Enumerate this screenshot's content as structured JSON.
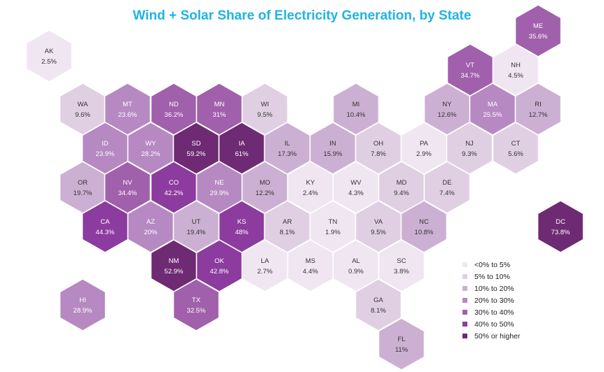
{
  "title": "Wind + Solar Share of Electricity Generation, by State",
  "legend": [
    {
      "label": "<0% to 5%",
      "color": "#f0e6f2"
    },
    {
      "label": "5% to 10%",
      "color": "#e0cfe3"
    },
    {
      "label": "10% to 20%",
      "color": "#ccb0d3"
    },
    {
      "label": "20% to 30%",
      "color": "#b689c2"
    },
    {
      "label": "30% to 40%",
      "color": "#a060ab"
    },
    {
      "label": "40% to 50%",
      "color": "#8c3b9e"
    },
    {
      "label": "50% or higher",
      "color": "#6e2a72"
    }
  ],
  "states": [
    {
      "abbr": "AK",
      "value": "2.5%",
      "bin": 0
    },
    {
      "abbr": "ME",
      "value": "35.6%",
      "bin": 4
    },
    {
      "abbr": "VT",
      "value": "34.7%",
      "bin": 4
    },
    {
      "abbr": "NH",
      "value": "4.5%",
      "bin": 0
    },
    {
      "abbr": "WA",
      "value": "9.6%",
      "bin": 1
    },
    {
      "abbr": "MT",
      "value": "23.6%",
      "bin": 3
    },
    {
      "abbr": "ND",
      "value": "36.2%",
      "bin": 4
    },
    {
      "abbr": "MN",
      "value": "31%",
      "bin": 4
    },
    {
      "abbr": "WI",
      "value": "9.5%",
      "bin": 1
    },
    {
      "abbr": "MI",
      "value": "10.4%",
      "bin": 2
    },
    {
      "abbr": "NY",
      "value": "12.6%",
      "bin": 2
    },
    {
      "abbr": "MA",
      "value": "25.5%",
      "bin": 3
    },
    {
      "abbr": "RI",
      "value": "12.7%",
      "bin": 2
    },
    {
      "abbr": "ID",
      "value": "23.9%",
      "bin": 3
    },
    {
      "abbr": "WY",
      "value": "28.2%",
      "bin": 3
    },
    {
      "abbr": "SD",
      "value": "59.2%",
      "bin": 6
    },
    {
      "abbr": "IA",
      "value": "61%",
      "bin": 6
    },
    {
      "abbr": "IL",
      "value": "17.3%",
      "bin": 2
    },
    {
      "abbr": "IN",
      "value": "15.9%",
      "bin": 2
    },
    {
      "abbr": "OH",
      "value": "7.8%",
      "bin": 1
    },
    {
      "abbr": "PA",
      "value": "2.9%",
      "bin": 0
    },
    {
      "abbr": "NJ",
      "value": "9.3%",
      "bin": 1
    },
    {
      "abbr": "CT",
      "value": "5.6%",
      "bin": 1
    },
    {
      "abbr": "OR",
      "value": "19.7%",
      "bin": 2
    },
    {
      "abbr": "NV",
      "value": "34.4%",
      "bin": 4
    },
    {
      "abbr": "CO",
      "value": "42.2%",
      "bin": 5
    },
    {
      "abbr": "NE",
      "value": "29.9%",
      "bin": 3
    },
    {
      "abbr": "MO",
      "value": "12.2%",
      "bin": 2
    },
    {
      "abbr": "KY",
      "value": "2.4%",
      "bin": 0
    },
    {
      "abbr": "WV",
      "value": "4.3%",
      "bin": 0
    },
    {
      "abbr": "MD",
      "value": "9.4%",
      "bin": 1
    },
    {
      "abbr": "DE",
      "value": "7.4%",
      "bin": 1
    },
    {
      "abbr": "CA",
      "value": "44.3%",
      "bin": 5
    },
    {
      "abbr": "AZ",
      "value": "20%",
      "bin": 3
    },
    {
      "abbr": "UT",
      "value": "19.4%",
      "bin": 2
    },
    {
      "abbr": "KS",
      "value": "48%",
      "bin": 5
    },
    {
      "abbr": "AR",
      "value": "8.1%",
      "bin": 1
    },
    {
      "abbr": "TN",
      "value": "1.9%",
      "bin": 0
    },
    {
      "abbr": "VA",
      "value": "9.5%",
      "bin": 1
    },
    {
      "abbr": "NC",
      "value": "10.8%",
      "bin": 2
    },
    {
      "abbr": "DC",
      "value": "73.8%",
      "bin": 6
    },
    {
      "abbr": "NM",
      "value": "52.9%",
      "bin": 6
    },
    {
      "abbr": "OK",
      "value": "42.8%",
      "bin": 5
    },
    {
      "abbr": "LA",
      "value": "2.7%",
      "bin": 0
    },
    {
      "abbr": "MS",
      "value": "4.4%",
      "bin": 0
    },
    {
      "abbr": "AL",
      "value": "0.9%",
      "bin": 0
    },
    {
      "abbr": "SC",
      "value": "3.8%",
      "bin": 0
    },
    {
      "abbr": "HI",
      "value": "28.9%",
      "bin": 3
    },
    {
      "abbr": "TX",
      "value": "32.5%",
      "bin": 4
    },
    {
      "abbr": "GA",
      "value": "8.1%",
      "bin": 1
    },
    {
      "abbr": "FL",
      "value": "11%",
      "bin": 2
    }
  ]
}
